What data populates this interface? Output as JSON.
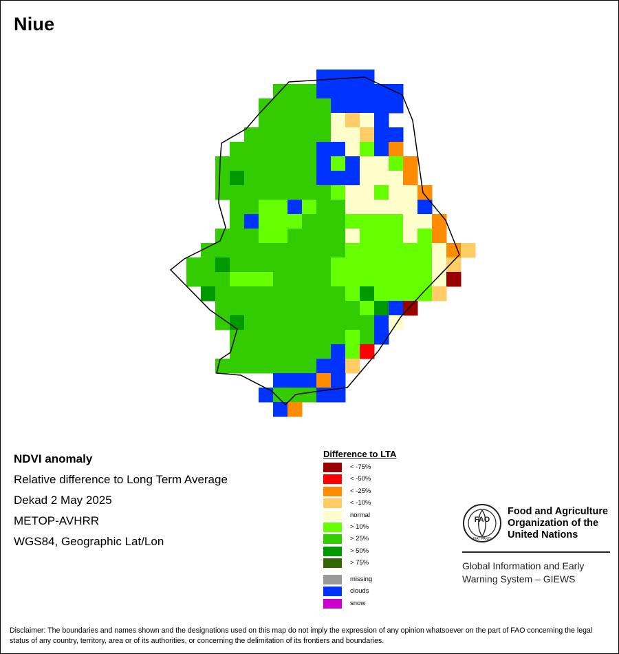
{
  "title": "Niue",
  "info": {
    "heading": "NDVI anomaly",
    "lines": [
      "Relative difference to Long Term Average",
      "Dekad 2 May 2025",
      "METOP-AVHRR",
      "WGS84, Geographic Lat/Lon"
    ]
  },
  "legend": {
    "title": "Difference to LTA",
    "classes": [
      {
        "label": "< -75%",
        "color": "#990000"
      },
      {
        "label": "< -50%",
        "color": "#ff0000"
      },
      {
        "label": "< -25%",
        "color": "#ff8c00"
      },
      {
        "label": "< -10%",
        "color": "#ffcc66"
      },
      {
        "label": "normal",
        "color": "#ffffcc"
      },
      {
        "label": "> 10%",
        "color": "#66ff00"
      },
      {
        "label": "> 25%",
        "color": "#33cc00"
      },
      {
        "label": "> 50%",
        "color": "#009900"
      },
      {
        "label": "> 75%",
        "color": "#336600"
      }
    ],
    "other": [
      {
        "label": "missing",
        "color": "#999999"
      },
      {
        "label": "clouds",
        "color": "#0033ff"
      },
      {
        "label": "snow",
        "color": "#cc00cc"
      }
    ]
  },
  "org": {
    "logo_text": "FAO",
    "logo_motto": "FIAT PANIS",
    "name": "Food and Agriculture\nOrganization of the\nUnited Nations",
    "system": "Global Information and Early\nWarning System – GIEWS"
  },
  "disclaimer": "Disclaimer: The boundaries and names shown and the designations used on this map do not imply the expression of any opinion whatsoever on the part of FAO concerning the legal status of any country, territory, area or of its authorities, or concerning the delimitation of its frontiers and boundaries.",
  "map": {
    "key": {
      ".": null,
      "G": "#33cc00",
      "L": "#66ff00",
      "D": "#009900",
      "B": "#0033ff",
      "N": "#ffffcc",
      "Y": "#ffcc66",
      "O": "#ff8c00",
      "M": "#990000",
      "R": "#ff0000"
    },
    "rows": [
      ".....................",
      "..........BBBB.......",
      ".......GGGBBBBBB.....",
      "......GGGGGBBBBB.....",
      "......GGGGGNYNB......",
      ".....GGGGGGNNYBB.....",
      "....GGGGGGBBNLBO.....",
      "...GGGGGGGBLBNNLO....",
      "...GDGGGGGBBBNNNO....",
      "...GGGGGGGGLNNLNNO...",
      "....GGLLBLGGNNNNNB...",
      "....GBLLLGGGLLLLNNO..",
      "...GGGLLGGGGNLLLNLO..",
      "..GGGGGGGGGGLLLLLLNOY",
      ".GGDGGGGGGGLLLLLLLNY.",
      ".GGGLLLGGGGLLLLLLLNM.",
      "..DGGGGGGGGGLDLLLLY..",
      "...GGGGGGGGGGLDBM....",
      "...GDGGGGGGGGGBN.....",
      "....GGGGGGGGLGB......",
      "....GGGGGGGBLR.......",
      "...GGGGGGGBBY........",
      ".......BBBOB.........",
      "......BGGGBB.........",
      ".......BO............"
    ],
    "boundary": [
      [
        420,
        119
      ],
      [
        530,
        112
      ],
      [
        585,
        138
      ],
      [
        600,
        175
      ],
      [
        615,
        280
      ],
      [
        648,
        320
      ],
      [
        668,
        370
      ],
      [
        615,
        425
      ],
      [
        583,
        460
      ],
      [
        550,
        510
      ],
      [
        505,
        563
      ],
      [
        472,
        567
      ],
      [
        430,
        573
      ],
      [
        415,
        588
      ],
      [
        395,
        568
      ],
      [
        350,
        545
      ],
      [
        315,
        542
      ],
      [
        320,
        522
      ],
      [
        335,
        512
      ],
      [
        345,
        478
      ],
      [
        305,
        450
      ],
      [
        248,
        392
      ],
      [
        268,
        376
      ],
      [
        320,
        350
      ],
      [
        328,
        330
      ],
      [
        318,
        295
      ],
      [
        320,
        235
      ],
      [
        322,
        208
      ],
      [
        358,
        187
      ],
      [
        377,
        165
      ]
    ]
  }
}
